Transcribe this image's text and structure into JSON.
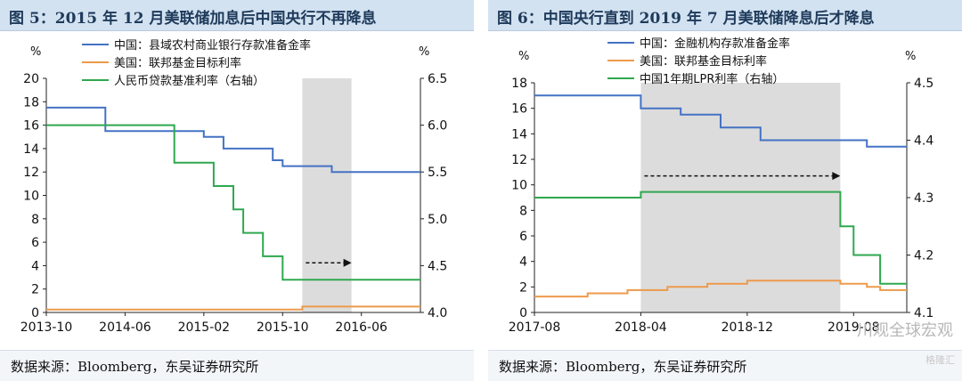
{
  "chart_data": [
    {
      "type": "line",
      "title": "图 5：2015 年 12 月美联储加息后中国央行不再降息",
      "left_axis_label": "%",
      "right_axis_label": "%",
      "left_ylim": [
        0,
        20
      ],
      "left_yticks": [
        0,
        2,
        4,
        6,
        8,
        10,
        12,
        14,
        16,
        18,
        20
      ],
      "right_ylim": [
        4.0,
        6.5
      ],
      "right_yticks": [
        4.0,
        4.5,
        5.0,
        5.5,
        6.0,
        6.5
      ],
      "right_ytick_labels": [
        "4.0",
        "4.5",
        "5.0",
        "5.5",
        "6.0",
        "6.5"
      ],
      "xrange": [
        "2013-10",
        "2016-12"
      ],
      "xtick_labels": [
        "2013-10",
        "2014-06",
        "2015-02",
        "2015-10",
        "2016-06"
      ],
      "shaded_region": [
        "2015-12",
        "2016-05"
      ],
      "arrow": {
        "from": "2015-12",
        "to": "2016-05",
        "y_right": 4.53
      },
      "series": [
        {
          "name": "中国：县域农村商业银行存款准备金率",
          "axis": "left",
          "color": "#4472c4",
          "points": [
            [
              "2013-10",
              17.5
            ],
            [
              "2014-04",
              17.5
            ],
            [
              "2014-04",
              15.5
            ],
            [
              "2015-02",
              15.5
            ],
            [
              "2015-02",
              15.0
            ],
            [
              "2015-04",
              15.0
            ],
            [
              "2015-04",
              14.0
            ],
            [
              "2015-09",
              14.0
            ],
            [
              "2015-09",
              13.0
            ],
            [
              "2015-10",
              13.0
            ],
            [
              "2015-10",
              12.5
            ],
            [
              "2016-03",
              12.5
            ],
            [
              "2016-03",
              12.0
            ],
            [
              "2016-12",
              12.0
            ]
          ]
        },
        {
          "name": "美国：联邦基金目标利率",
          "axis": "left",
          "color": "#ed9a4b",
          "points": [
            [
              "2013-10",
              0.25
            ],
            [
              "2015-12",
              0.25
            ],
            [
              "2015-12",
              0.5
            ],
            [
              "2016-12",
              0.5
            ]
          ]
        },
        {
          "name": "人民币贷款基准利率（右轴）",
          "axis": "right",
          "color": "#2fa84f",
          "points": [
            [
              "2013-10",
              6.0
            ],
            [
              "2014-11",
              6.0
            ],
            [
              "2014-11",
              5.6
            ],
            [
              "2015-03",
              5.6
            ],
            [
              "2015-03",
              5.35
            ],
            [
              "2015-05",
              5.35
            ],
            [
              "2015-05",
              5.1
            ],
            [
              "2015-06",
              5.1
            ],
            [
              "2015-06",
              4.85
            ],
            [
              "2015-08",
              4.85
            ],
            [
              "2015-08",
              4.6
            ],
            [
              "2015-10",
              4.6
            ],
            [
              "2015-10",
              4.35
            ],
            [
              "2016-12",
              4.35
            ]
          ]
        }
      ],
      "source": "数据来源：Bloomberg，东吴证券研究所"
    },
    {
      "type": "line",
      "title": "图 6：中国央行直到 2019 年 7 月美联储降息后才降息",
      "left_axis_label": "%",
      "right_axis_label": "%",
      "left_ylim": [
        0,
        18
      ],
      "left_yticks": [
        0,
        2,
        4,
        6,
        8,
        10,
        12,
        14,
        16,
        18
      ],
      "right_ylim": [
        4.1,
        4.5
      ],
      "right_yticks": [
        4.1,
        4.2,
        4.3,
        4.4,
        4.5
      ],
      "right_ytick_labels": [
        "4.1",
        "4.2",
        "4.3",
        "4.4",
        "4.5"
      ],
      "xrange": [
        "2017-08",
        "2019-12"
      ],
      "xtick_labels": [
        "2017-08",
        "2018-04",
        "2018-12",
        "2019-08"
      ],
      "shaded_region": [
        "2018-04",
        "2019-07"
      ],
      "arrow": {
        "from": "2018-04",
        "to": "2019-07",
        "y_left": 10.7
      },
      "series": [
        {
          "name": "中国：金融机构存款准备金率",
          "axis": "left",
          "color": "#4472c4",
          "points": [
            [
              "2017-08",
              17.0
            ],
            [
              "2018-04",
              17.0
            ],
            [
              "2018-04",
              16.0
            ],
            [
              "2018-07",
              16.0
            ],
            [
              "2018-07",
              15.5
            ],
            [
              "2018-10",
              15.5
            ],
            [
              "2018-10",
              14.5
            ],
            [
              "2019-01",
              14.5
            ],
            [
              "2019-01",
              13.5
            ],
            [
              "2019-09",
              13.5
            ],
            [
              "2019-09",
              13.0
            ],
            [
              "2019-12",
              13.0
            ]
          ]
        },
        {
          "name": "美国：联邦基金目标利率",
          "axis": "left",
          "color": "#ed9a4b",
          "points": [
            [
              "2017-08",
              1.25
            ],
            [
              "2017-12",
              1.25
            ],
            [
              "2017-12",
              1.5
            ],
            [
              "2018-03",
              1.5
            ],
            [
              "2018-03",
              1.75
            ],
            [
              "2018-06",
              1.75
            ],
            [
              "2018-06",
              2.0
            ],
            [
              "2018-09",
              2.0
            ],
            [
              "2018-09",
              2.25
            ],
            [
              "2018-12",
              2.25
            ],
            [
              "2018-12",
              2.5
            ],
            [
              "2019-07",
              2.5
            ],
            [
              "2019-07",
              2.25
            ],
            [
              "2019-09",
              2.25
            ],
            [
              "2019-09",
              2.0
            ],
            [
              "2019-10",
              2.0
            ],
            [
              "2019-10",
              1.75
            ],
            [
              "2019-12",
              1.75
            ]
          ]
        },
        {
          "name": "中国1年期LPR利率（右轴）",
          "axis": "right",
          "color": "#2fa84f",
          "points": [
            [
              "2017-08",
              4.3
            ],
            [
              "2018-04",
              4.3
            ],
            [
              "2018-04",
              4.31
            ],
            [
              "2019-07",
              4.31
            ],
            [
              "2019-07",
              4.25
            ],
            [
              "2019-08",
              4.25
            ],
            [
              "2019-08",
              4.2
            ],
            [
              "2019-10",
              4.2
            ],
            [
              "2019-10",
              4.15
            ],
            [
              "2019-12",
              4.15
            ]
          ]
        }
      ],
      "source": "数据来源：Bloomberg，东吴证券研究所"
    }
  ],
  "watermark": {
    "text": "川观全球宏观",
    "sub": "格隆汇"
  }
}
